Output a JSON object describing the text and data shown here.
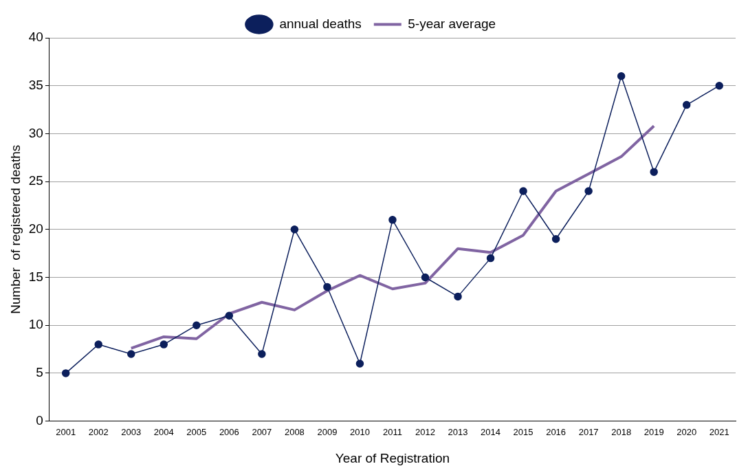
{
  "chart_data": {
    "type": "line",
    "xlabel": "Year of Registration",
    "ylabel": "Number  of registered deaths",
    "categories": [
      "2001",
      "2002",
      "2003",
      "2004",
      "2005",
      "2006",
      "2007",
      "2008",
      "2009",
      "2010",
      "2011",
      "2012",
      "2013",
      "2014",
      "2015",
      "2016",
      "2017",
      "2018",
      "2019",
      "2020",
      "2021"
    ],
    "series": [
      {
        "name": "5-year average",
        "color": "#8064a2",
        "marker": "none",
        "values": [
          null,
          null,
          7.6,
          8.8,
          8.6,
          11.2,
          12.4,
          11.6,
          13.6,
          15.2,
          13.8,
          14.4,
          18,
          17.6,
          19.4,
          24,
          25.8,
          27.6,
          30.8,
          null,
          null
        ]
      },
      {
        "name": "annual deaths",
        "color": "#0c1f5c",
        "marker": "circle",
        "values": [
          5,
          8,
          7,
          8,
          10,
          11,
          7,
          20,
          14,
          6,
          21,
          15,
          13,
          17,
          24,
          19,
          24,
          36,
          26,
          33,
          35
        ]
      }
    ],
    "ylim": [
      0,
      40
    ],
    "yticks": [
      0,
      5,
      10,
      15,
      20,
      25,
      30,
      35,
      40
    ],
    "grid": "y",
    "legend": "top",
    "line_style": "solid"
  }
}
